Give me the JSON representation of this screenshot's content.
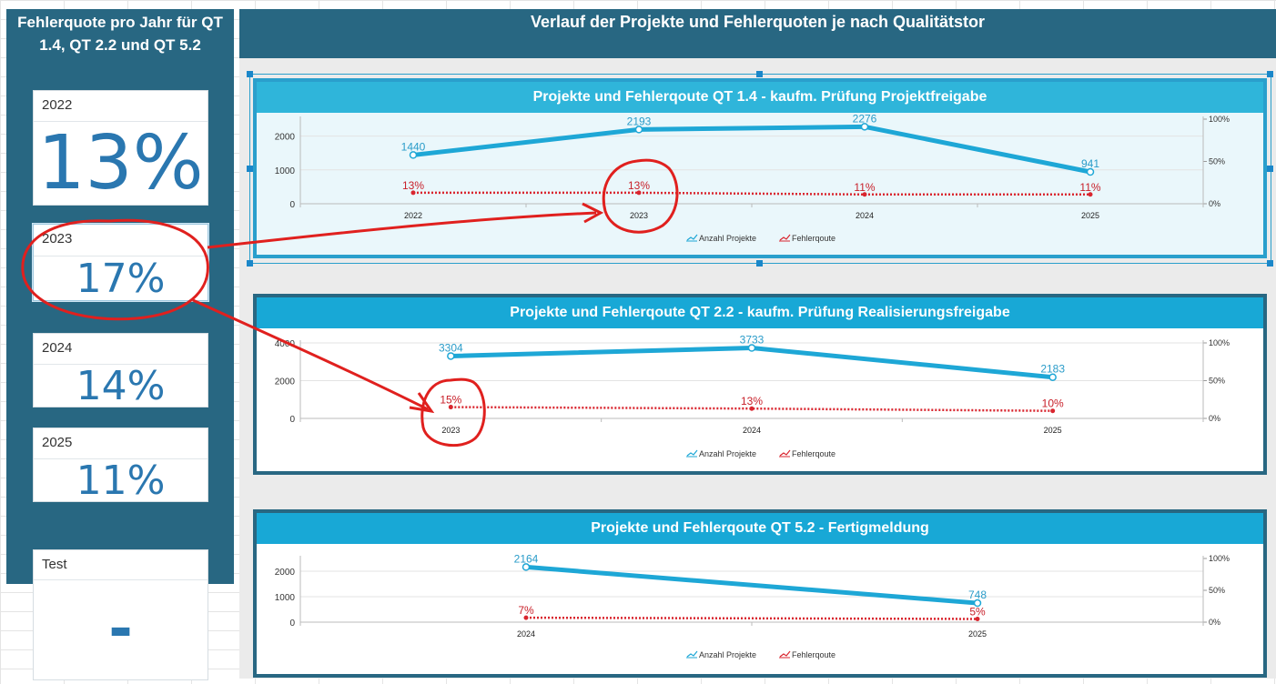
{
  "left_panel": {
    "title": "Fehlerquote pro Jahr für QT 1.4, QT 2.2 und QT 5.2",
    "kpis": [
      {
        "year": "2022",
        "value": "13%"
      },
      {
        "year": "2023",
        "value": "17%"
      },
      {
        "year": "2024",
        "value": "14%"
      },
      {
        "year": "2025",
        "value": "11%"
      },
      {
        "year": "Test",
        "value": "-"
      }
    ]
  },
  "main": {
    "title": "Verlauf der Projekte und Fehlerquoten je nach Qualitätstor"
  },
  "colors": {
    "panel_bg": "#286782",
    "title_bar": "#18a8d6",
    "projects_line": "#1ea7d6",
    "error_line": "#d9262f",
    "kpi_value": "#2a77b0",
    "annotation": "#e0201e"
  },
  "chart_data": [
    {
      "type": "line",
      "title": "Projekte und Fehlerqoute QT 1.4 - kaufm. Prüfung Projektfreigabe",
      "categories": [
        "2022",
        "2023",
        "2024",
        "2025"
      ],
      "series": [
        {
          "name": "Anzahl Projekte",
          "axis": "left",
          "values": [
            1440,
            2193,
            2276,
            941
          ],
          "labels": [
            "1440",
            "2193",
            "2276",
            "941"
          ]
        },
        {
          "name": "Fehlerqoute",
          "axis": "right",
          "values": [
            13,
            13,
            11,
            11
          ],
          "labels": [
            "13%",
            "13%",
            "11%",
            "11%"
          ]
        }
      ],
      "y_left": {
        "ticks": [
          "0",
          "1000",
          "2000"
        ],
        "max": 2500
      },
      "y_right": {
        "ticks": [
          "0%",
          "50%",
          "100%"
        ],
        "max": 100
      },
      "grid": true,
      "legend": "bottom"
    },
    {
      "type": "line",
      "title": "Projekte und Fehlerqoute QT 2.2 - kaufm. Prüfung Realisierungsfreigabe",
      "categories": [
        "2023",
        "2024",
        "2025"
      ],
      "series": [
        {
          "name": "Anzahl Projekte",
          "axis": "left",
          "values": [
            3304,
            3733,
            2183
          ],
          "labels": [
            "3304",
            "3733",
            "2183"
          ]
        },
        {
          "name": "Fehlerqoute",
          "axis": "right",
          "values": [
            15,
            13,
            10
          ],
          "labels": [
            "15%",
            "13%",
            "10%"
          ]
        }
      ],
      "y_left": {
        "ticks": [
          "0",
          "2000",
          "4000"
        ],
        "max": 4000
      },
      "y_right": {
        "ticks": [
          "0%",
          "50%",
          "100%"
        ],
        "max": 100
      },
      "grid": true,
      "legend": "bottom"
    },
    {
      "type": "line",
      "title": "Projekte und Fehlerqoute QT 5.2 - Fertigmeldung",
      "categories": [
        "2024",
        "2025"
      ],
      "series": [
        {
          "name": "Anzahl Projekte",
          "axis": "left",
          "values": [
            2164,
            748
          ],
          "labels": [
            "2164",
            "748"
          ]
        },
        {
          "name": "Fehlerqoute",
          "axis": "right",
          "values": [
            7,
            5
          ],
          "labels": [
            "7%",
            "5%"
          ]
        }
      ],
      "y_left": {
        "ticks": [
          "0",
          "1000",
          "2000"
        ],
        "max": 2500
      },
      "y_right": {
        "ticks": [
          "0%",
          "50%",
          "100%"
        ],
        "max": 100
      },
      "grid": true,
      "legend": "bottom"
    }
  ]
}
